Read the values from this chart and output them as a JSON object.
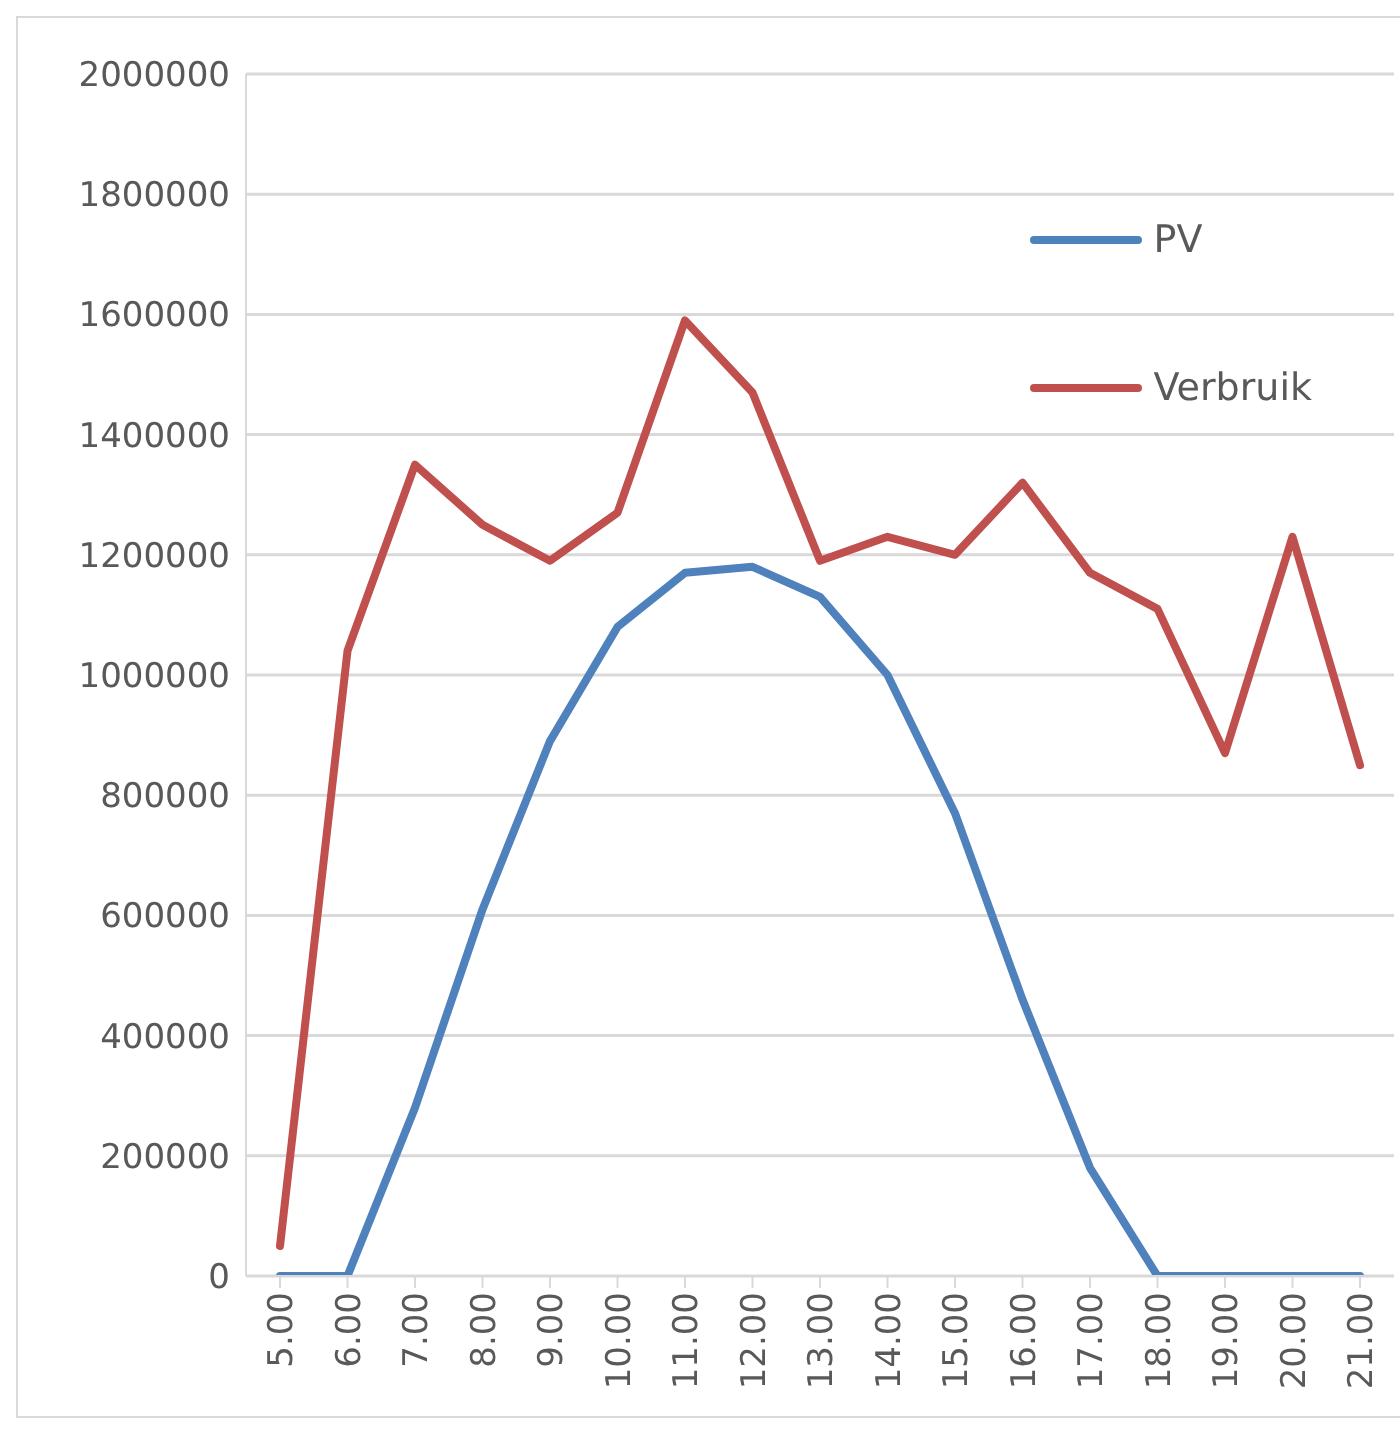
{
  "chart_data": {
    "type": "line",
    "categories": [
      "5.00",
      "6.00",
      "7.00",
      "8.00",
      "9.00",
      "10.00",
      "11.00",
      "12.00",
      "13.00",
      "14.00",
      "15.00",
      "16.00",
      "17.00",
      "18.00",
      "19.00",
      "20.00",
      "21.00"
    ],
    "series": [
      {
        "name": "PV",
        "color": "#4f81bd",
        "values": [
          0,
          0,
          280000,
          610000,
          890000,
          1080000,
          1170000,
          1180000,
          1130000,
          1000000,
          770000,
          460000,
          180000,
          0,
          0,
          0,
          0
        ]
      },
      {
        "name": "Verbruik",
        "color": "#c0504d",
        "values": [
          50000,
          1040000,
          1350000,
          1250000,
          1190000,
          1270000,
          1590000,
          1470000,
          1190000,
          1230000,
          1200000,
          1320000,
          1170000,
          1110000,
          870000,
          1230000,
          850000
        ]
      }
    ],
    "ylim": [
      0,
      2000000
    ],
    "yticks": [
      0,
      200000,
      400000,
      600000,
      800000,
      1000000,
      1200000,
      1400000,
      1600000,
      1800000,
      2000000
    ],
    "grid": "y",
    "legend": "top right",
    "marker": "none",
    "line_style": "solid"
  }
}
